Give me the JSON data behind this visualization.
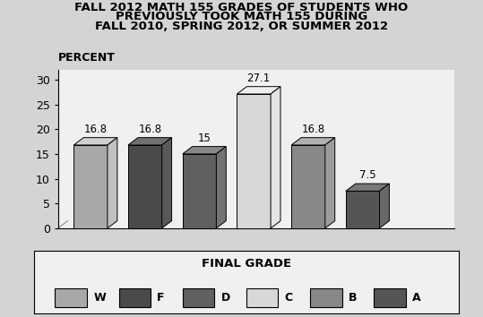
{
  "title_line1": "FALL 2012 MATH 155 GRADES OF STUDENTS WHO",
  "title_line2": "PREVIOUSLY TOOK MATH 155 DURING",
  "title_line3": "FALL 2010, SPRING 2012, OR SUMMER 2012",
  "percent_label": "PERCENT",
  "legend_title": "FINAL GRADE",
  "categories": [
    "W",
    "F",
    "D",
    "C",
    "B",
    "A"
  ],
  "values": [
    16.8,
    16.8,
    15.0,
    27.1,
    16.8,
    7.5
  ],
  "bar_colors_front": [
    "#a8a8a8",
    "#4a4a4a",
    "#606060",
    "#d8d8d8",
    "#888888",
    "#555555"
  ],
  "bar_colors_top": [
    "#d0d0d0",
    "#707070",
    "#888888",
    "#f0f0f0",
    "#b0b0b0",
    "#787878"
  ],
  "bar_colors_right": [
    "#c0c0c0",
    "#585858",
    "#747474",
    "#e4e4e4",
    "#9c9c9c",
    "#686868"
  ],
  "bar_edge_color": "#000000",
  "ylim": [
    0,
    32
  ],
  "yticks": [
    0,
    5,
    10,
    15,
    20,
    25,
    30
  ],
  "bg_color": "#d4d4d4",
  "plot_bg_color": "#f0f0f0",
  "legend_bg_color": "#f0f0f0",
  "title_fontsize": 9.5,
  "label_fontsize": 9,
  "tick_fontsize": 9,
  "legend_fontsize": 9,
  "bar_label_fontsize": 8.5,
  "bar_depth": 0.18,
  "bar_width": 0.62,
  "value_labels": [
    "16.8",
    "16.8",
    "15",
    "27.1",
    "16.8",
    "7.5"
  ]
}
